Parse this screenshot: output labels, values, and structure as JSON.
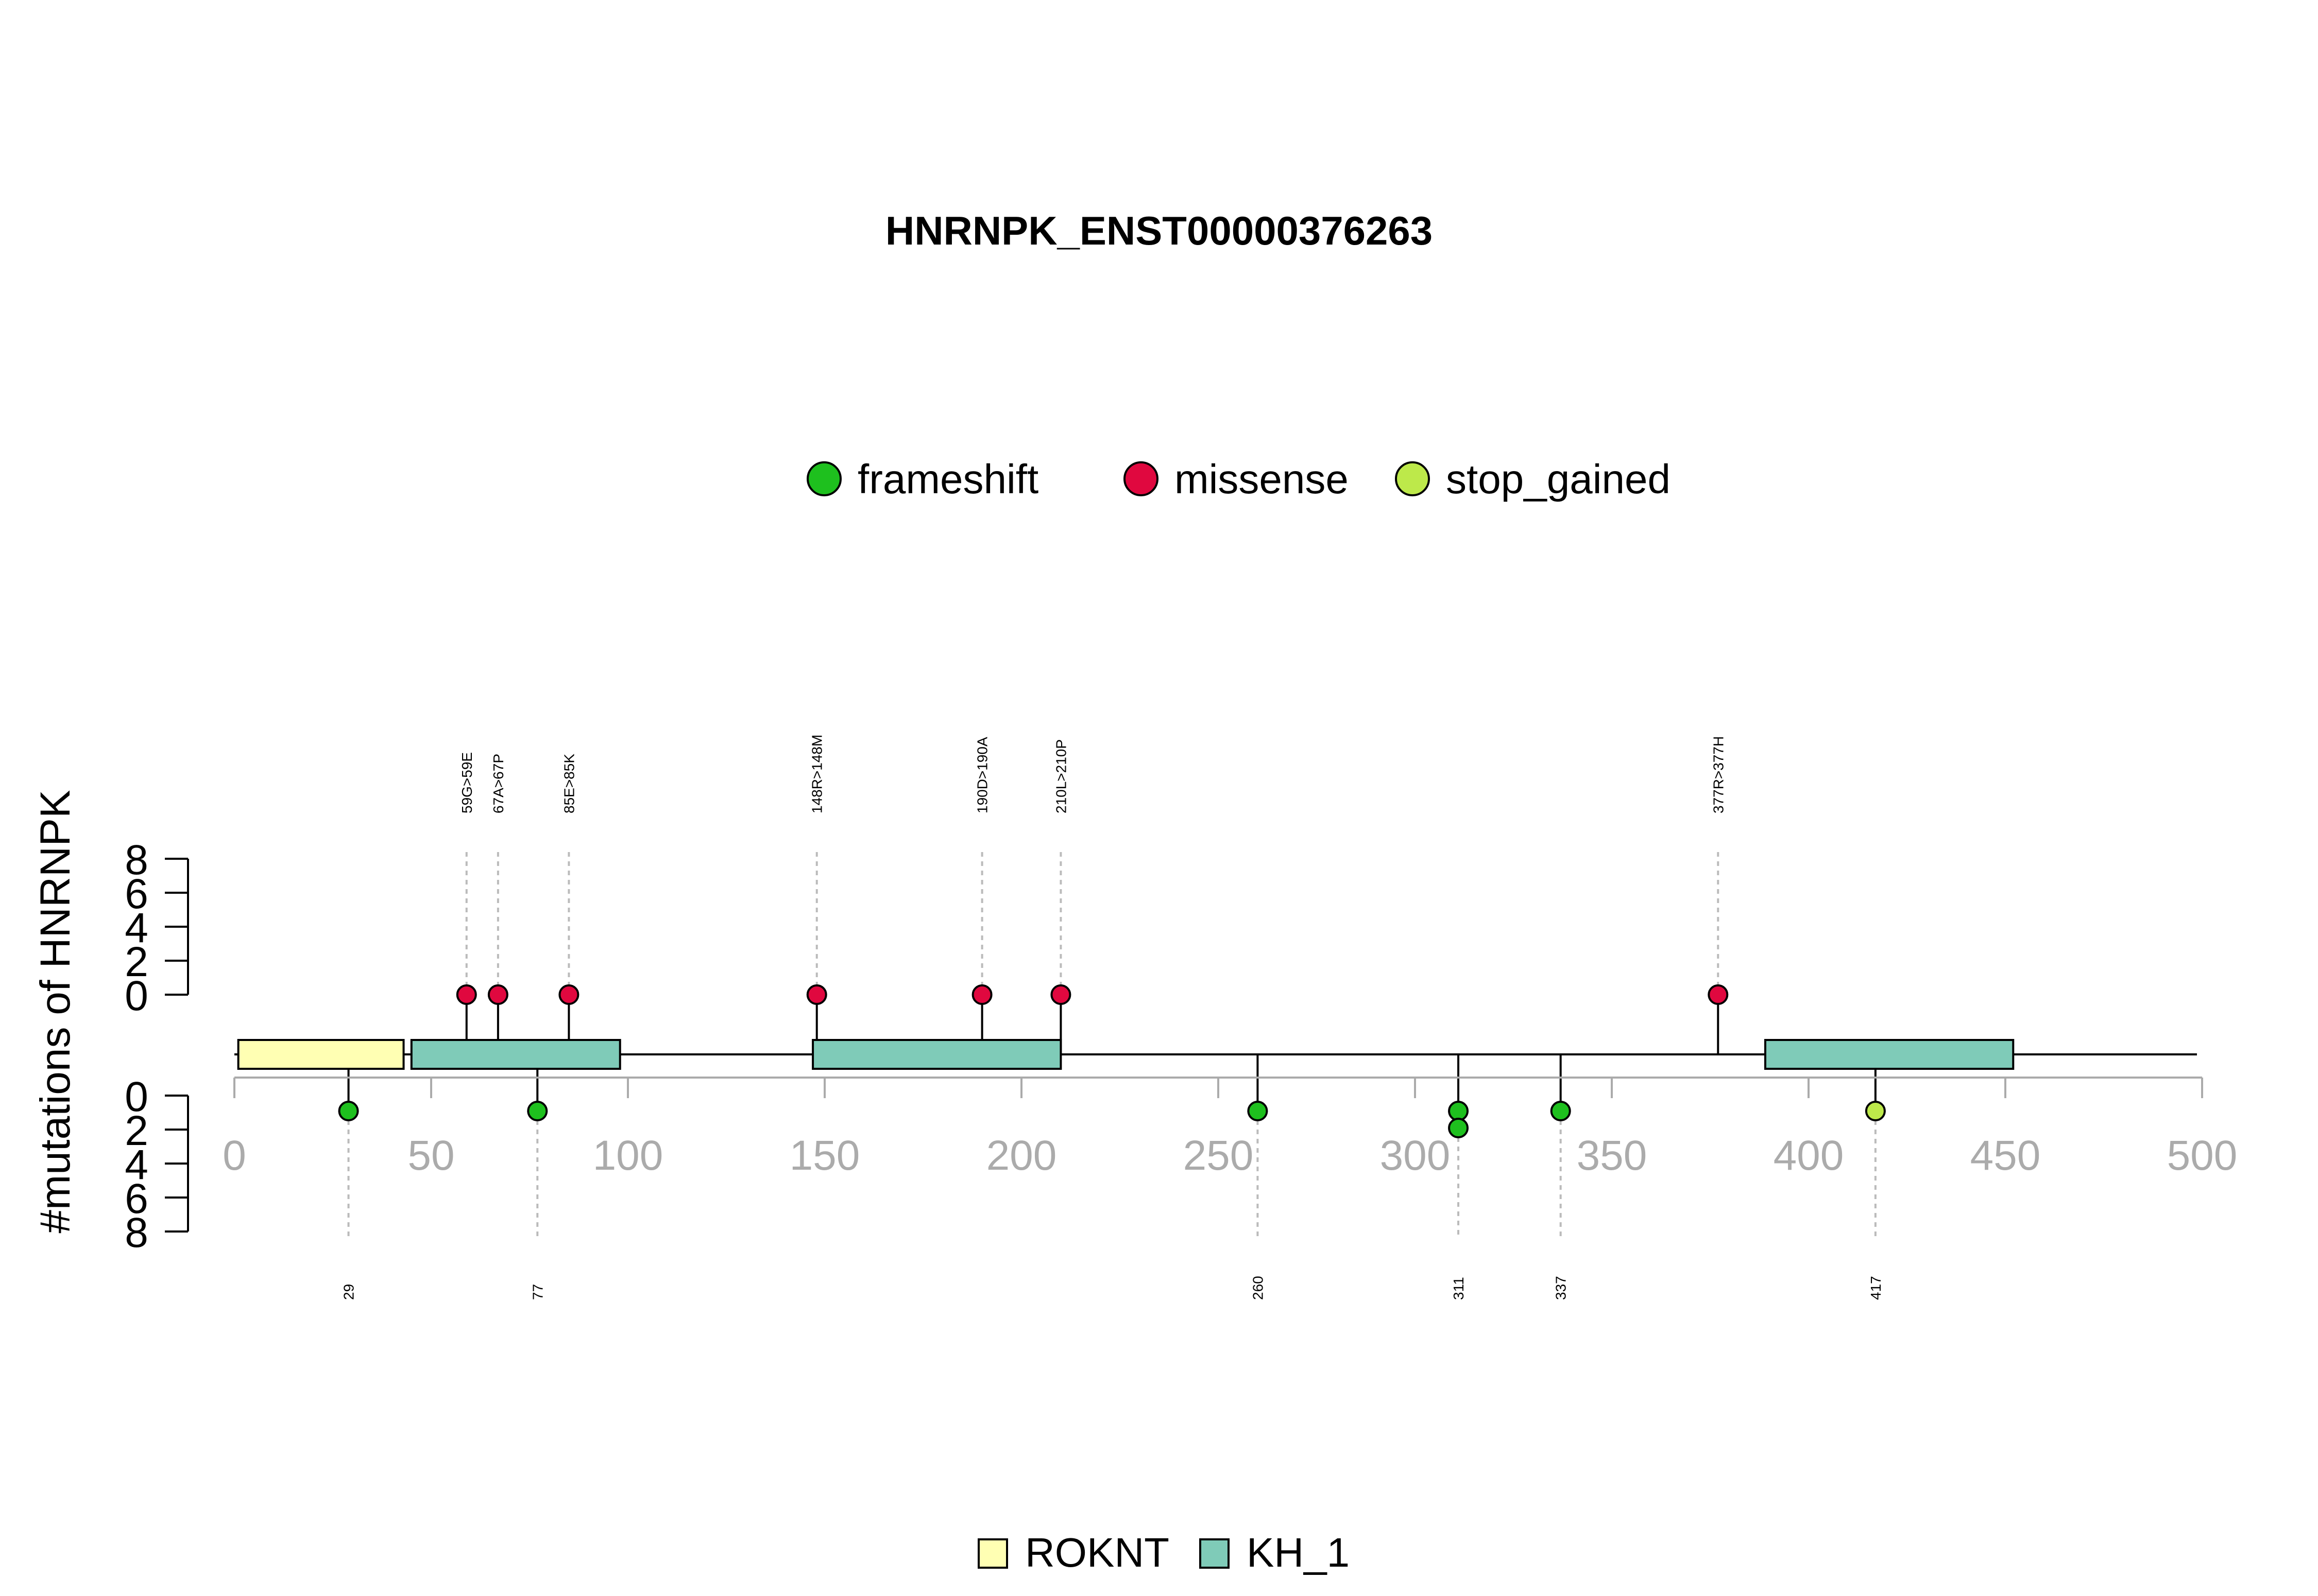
{
  "chart_data": {
    "type": "lollipop",
    "title": "HNRNPK_ENST00000376263",
    "ylabel": "#mutations of HNRNPK",
    "xlim": [
      0,
      500
    ],
    "x_ticks": [
      0,
      50,
      100,
      150,
      200,
      250,
      300,
      350,
      400,
      450,
      500
    ],
    "y_ticks": [
      0,
      2,
      4,
      6,
      8
    ],
    "ylim": [
      0,
      8
    ],
    "legend_mutations": [
      {
        "name": "frameshift",
        "color": "#1ec01e"
      },
      {
        "name": "missense",
        "color": "#e0083f"
      },
      {
        "name": "stop_gained",
        "color": "#bde94a"
      }
    ],
    "legend_domains": [
      {
        "name": "ROKNT",
        "color": "#ffffb3"
      },
      {
        "name": "KH_1",
        "color": "#7fcbb8"
      }
    ],
    "domains": [
      {
        "name": "ROKNT",
        "start": 1,
        "end": 43
      },
      {
        "name": "KH_1",
        "start": 45,
        "end": 98
      },
      {
        "name": "KH_1",
        "start": 147,
        "end": 210
      },
      {
        "name": "KH_1",
        "start": 389,
        "end": 452
      }
    ],
    "mutations_top": [
      {
        "pos": 59,
        "count": 1,
        "type": "missense",
        "label": "59G>59E"
      },
      {
        "pos": 67,
        "count": 1,
        "type": "missense",
        "label": "67A>67P"
      },
      {
        "pos": 85,
        "count": 1,
        "type": "missense",
        "label": "85E>85K"
      },
      {
        "pos": 148,
        "count": 1,
        "type": "missense",
        "label": "148R>148M"
      },
      {
        "pos": 190,
        "count": 1,
        "type": "missense",
        "label": "190D>190A"
      },
      {
        "pos": 210,
        "count": 1,
        "type": "missense",
        "label": "210L>210P"
      },
      {
        "pos": 377,
        "count": 1,
        "type": "missense",
        "label": "377R>377H"
      }
    ],
    "mutations_bottom": [
      {
        "pos": 29,
        "count": 1,
        "type": "frameshift",
        "label": "29"
      },
      {
        "pos": 77,
        "count": 1,
        "type": "frameshift",
        "label": "77"
      },
      {
        "pos": 260,
        "count": 1,
        "type": "frameshift",
        "label": "260"
      },
      {
        "pos": 311,
        "count": 2,
        "type": "frameshift",
        "label": "311"
      },
      {
        "pos": 337,
        "count": 1,
        "type": "frameshift",
        "label": "337"
      },
      {
        "pos": 417,
        "count": 1,
        "type": "stop_gained",
        "label": "417"
      }
    ]
  }
}
